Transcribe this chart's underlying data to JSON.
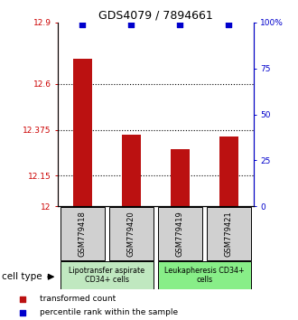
{
  "title": "GDS4079 / 7894661",
  "samples": [
    "GSM779418",
    "GSM779420",
    "GSM779419",
    "GSM779421"
  ],
  "bar_values": [
    12.72,
    12.35,
    12.28,
    12.34
  ],
  "percentile_values": [
    99,
    99,
    99,
    99
  ],
  "ylim_left": [
    12,
    12.9
  ],
  "ylim_right": [
    0,
    100
  ],
  "yticks_left": [
    12,
    12.15,
    12.375,
    12.6,
    12.9
  ],
  "ytick_labels_left": [
    "12",
    "12.15",
    "12.375",
    "12.6",
    "12.9"
  ],
  "yticks_right": [
    0,
    25,
    50,
    75,
    100
  ],
  "ytick_labels_right": [
    "0",
    "25",
    "50",
    "75",
    "100%"
  ],
  "hline_values": [
    12.15,
    12.375,
    12.6
  ],
  "bar_color": "#bb1111",
  "dot_color": "#0000cc",
  "group_labels": [
    "Lipotransfer aspirate\nCD34+ cells",
    "Leukapheresis CD34+\ncells"
  ],
  "group_colors": [
    "#c0e8c0",
    "#88ee88"
  ],
  "group_ranges": [
    [
      0,
      2
    ],
    [
      2,
      4
    ]
  ],
  "cell_type_label": "cell type",
  "legend_items": [
    {
      "color": "#bb1111",
      "marker": "s",
      "label": "transformed count"
    },
    {
      "color": "#0000cc",
      "marker": "s",
      "label": "percentile rank within the sample"
    }
  ],
  "background_color": "#ffffff",
  "label_box_color": "#d0d0d0"
}
